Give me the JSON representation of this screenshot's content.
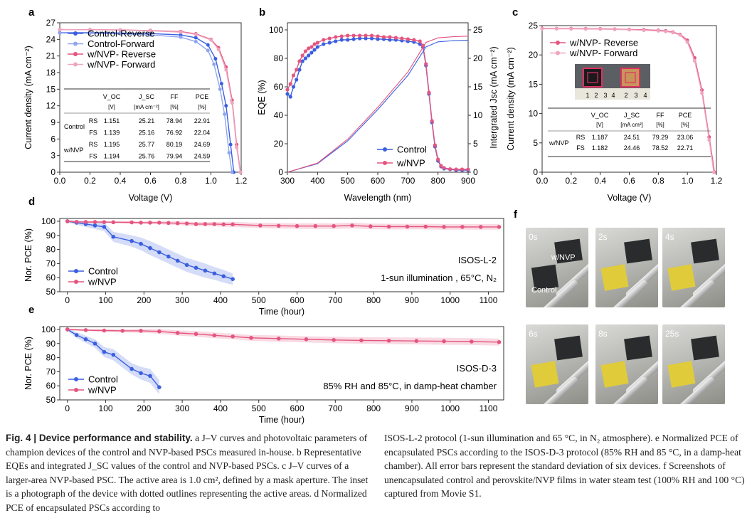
{
  "panels": {
    "a": "a",
    "b": "b",
    "c": "c",
    "d": "d",
    "e": "e",
    "f": "f"
  },
  "colors": {
    "control": "#3a5fe0",
    "nvp": "#e4557f",
    "control_light": "#8fa5ef",
    "nvp_light": "#efa5c0"
  },
  "chart_data": [
    {
      "id": "a",
      "type": "line",
      "xlabel": "Voltage (V)",
      "ylabel": "Current density (mA cm⁻²)",
      "xlim": [
        0,
        1.2
      ],
      "ylim": [
        0,
        27
      ],
      "xticks": [
        "0.0",
        "0.2",
        "0.4",
        "0.6",
        "0.8",
        "1.0",
        "1.2"
      ],
      "yticks": [
        "0",
        "3",
        "6",
        "9",
        "12",
        "15",
        "18",
        "21",
        "24",
        "27"
      ],
      "series": [
        {
          "name": "Control-Reverse",
          "x": [
            0,
            0.2,
            0.4,
            0.6,
            0.8,
            0.9,
            0.98,
            1.03,
            1.07,
            1.1,
            1.13,
            1.151
          ],
          "y": [
            25.21,
            25.2,
            25.15,
            25.05,
            24.8,
            24.3,
            23.0,
            20.5,
            16,
            12,
            5,
            0
          ]
        },
        {
          "name": "Control-Forward",
          "x": [
            0,
            0.2,
            0.4,
            0.6,
            0.8,
            0.9,
            0.98,
            1.02,
            1.06,
            1.09,
            1.12,
            1.139
          ],
          "y": [
            25.16,
            25.1,
            25.0,
            24.8,
            24.4,
            23.6,
            22.0,
            19.5,
            15,
            10.5,
            3.5,
            0
          ]
        },
        {
          "name": "w/NVP- Reverse",
          "x": [
            0,
            0.2,
            0.4,
            0.6,
            0.8,
            0.9,
            1.0,
            1.05,
            1.1,
            1.14,
            1.17,
            1.195
          ],
          "y": [
            25.77,
            25.75,
            25.7,
            25.6,
            25.4,
            25.0,
            24.0,
            22.5,
            19,
            13,
            5,
            0
          ]
        },
        {
          "name": "w/NVP- Forward",
          "x": [
            0,
            0.2,
            0.4,
            0.6,
            0.8,
            0.9,
            1.0,
            1.05,
            1.1,
            1.14,
            1.17,
            1.194
          ],
          "y": [
            25.76,
            25.74,
            25.68,
            25.55,
            25.3,
            24.9,
            23.9,
            22.2,
            18.5,
            12.5,
            4.5,
            0
          ]
        }
      ],
      "table": {
        "headers": [
          "V_OC",
          "J_SC",
          "FF",
          "PCE"
        ],
        "units": [
          "[V]",
          "[mA cm⁻²]",
          "[%]",
          "[%]"
        ],
        "rows": [
          {
            "group": "Control",
            "scan": "RS",
            "voc": "1.151",
            "jsc": "25.21",
            "ff": "78.94",
            "pce": "22.91"
          },
          {
            "group": "",
            "scan": "FS",
            "voc": "1.139",
            "jsc": "25.16",
            "ff": "76.92",
            "pce": "22.04"
          },
          {
            "group": "w/NVP",
            "scan": "RS",
            "voc": "1.195",
            "jsc": "25.77",
            "ff": "80.19",
            "pce": "24.69"
          },
          {
            "group": "",
            "scan": "FS",
            "voc": "1.194",
            "jsc": "25.76",
            "ff": "79.94",
            "pce": "24.59"
          }
        ]
      }
    },
    {
      "id": "b",
      "type": "line",
      "xlabel": "Wavelength (nm)",
      "ylabel": "EQE (%)",
      "ylabel2": "Intergrated Jsc (mA cm⁻²)",
      "xlim": [
        300,
        900
      ],
      "ylim": [
        0,
        105
      ],
      "ylim2": [
        0,
        26.25
      ],
      "xticks": [
        "300",
        "400",
        "500",
        "600",
        "700",
        "800",
        "900"
      ],
      "yticks": [
        "0",
        "20",
        "40",
        "60",
        "80",
        "100"
      ],
      "yticks2": [
        "0",
        "5",
        "10",
        "15",
        "20",
        "25"
      ],
      "series": [
        {
          "name": "Control",
          "x": [
            300,
            310,
            320,
            330,
            340,
            350,
            360,
            370,
            380,
            390,
            400,
            420,
            440,
            460,
            480,
            500,
            520,
            540,
            560,
            580,
            600,
            620,
            640,
            660,
            680,
            700,
            720,
            740,
            750,
            760,
            770,
            780,
            790,
            800,
            810,
            820,
            840,
            860,
            880,
            900
          ],
          "y": [
            55,
            53,
            60,
            65,
            72,
            78,
            80,
            82,
            84,
            86,
            88,
            90,
            91,
            92,
            93,
            93,
            93.5,
            94,
            94,
            94,
            93.5,
            93.5,
            93,
            93,
            92.5,
            92,
            91.5,
            90,
            88,
            75,
            55,
            35,
            18,
            8,
            4,
            2.5,
            2,
            1.5,
            1.5,
            1.5
          ]
        },
        {
          "name": "w/NVP",
          "x": [
            300,
            310,
            320,
            330,
            340,
            350,
            360,
            370,
            380,
            390,
            400,
            420,
            440,
            460,
            480,
            500,
            520,
            540,
            560,
            580,
            600,
            620,
            640,
            660,
            680,
            700,
            720,
            740,
            750,
            760,
            770,
            780,
            790,
            800,
            810,
            820,
            840,
            860,
            880,
            900
          ],
          "y": [
            58,
            62,
            68,
            72,
            78,
            82,
            85,
            87,
            88,
            90,
            91,
            93,
            94,
            95,
            95.5,
            96,
            96,
            96,
            96,
            96,
            95.5,
            95,
            95,
            94.5,
            94,
            93.5,
            93,
            92,
            89,
            76,
            56,
            36,
            19,
            9,
            4.5,
            3,
            2.2,
            2,
            2,
            2
          ]
        },
        {
          "name": "Control Jsc",
          "x": [
            300,
            400,
            500,
            600,
            700,
            760,
            800,
            850,
            900
          ],
          "y": [
            0,
            1.5,
            5.5,
            11,
            17,
            22,
            22.9,
            23.1,
            23.2
          ]
        },
        {
          "name": "w/NVP Jsc",
          "x": [
            300,
            400,
            500,
            600,
            700,
            760,
            800,
            850,
            900
          ],
          "y": [
            0,
            1.6,
            5.8,
            11.4,
            17.6,
            22.8,
            23.6,
            23.8,
            23.9
          ]
        }
      ]
    },
    {
      "id": "c",
      "type": "line",
      "xlabel": "Voltage (V)",
      "ylabel": "Current density (mA cm⁻²)",
      "xlim": [
        0,
        1.2
      ],
      "ylim": [
        0,
        25
      ],
      "xticks": [
        "0.0",
        "0.2",
        "0.4",
        "0.6",
        "0.8",
        "1.0",
        "1.2"
      ],
      "yticks": [
        "0",
        "5",
        "10",
        "15",
        "20",
        "25"
      ],
      "series": [
        {
          "name": "w/NVP- Reverse",
          "x": [
            0,
            0.1,
            0.2,
            0.3,
            0.4,
            0.5,
            0.6,
            0.7,
            0.8,
            0.85,
            0.9,
            0.95,
            1.0,
            1.05,
            1.1,
            1.15,
            1.187
          ],
          "y": [
            24.51,
            24.5,
            24.5,
            24.48,
            24.45,
            24.4,
            24.35,
            24.3,
            24.2,
            24.1,
            23.9,
            23.5,
            22.5,
            19.5,
            14,
            6,
            0
          ]
        },
        {
          "name": "w/NVP- Forward",
          "x": [
            0,
            0.1,
            0.2,
            0.3,
            0.4,
            0.5,
            0.6,
            0.7,
            0.8,
            0.85,
            0.9,
            0.95,
            1.0,
            1.05,
            1.1,
            1.15,
            1.182
          ],
          "y": [
            24.46,
            24.45,
            24.44,
            24.42,
            24.4,
            24.35,
            24.3,
            24.2,
            24.1,
            24.0,
            23.8,
            23.4,
            22.2,
            19,
            13.5,
            5.5,
            0
          ]
        }
      ],
      "table": {
        "headers": [
          "V_OC",
          "J_SC",
          "FF",
          "PCE"
        ],
        "units": [
          "[V]",
          "[mA cm²]",
          "[%]",
          "[%]"
        ],
        "rows": [
          {
            "group": "w/NVP",
            "scan": "RS",
            "voc": "1.187",
            "jsc": "24.51",
            "ff": "79.29",
            "pce": "23.06"
          },
          {
            "group": "",
            "scan": "FS",
            "voc": "1.182",
            "jsc": "24.46",
            "ff": "78.52",
            "pce": "22.71"
          }
        ]
      }
    },
    {
      "id": "d",
      "type": "line",
      "xlabel": "Time (hour)",
      "ylabel": "Nor. PCE (%)",
      "xlim": [
        -20,
        1140
      ],
      "ylim": [
        50,
        102
      ],
      "xticks": [
        "0",
        "100",
        "200",
        "300",
        "400",
        "500",
        "600",
        "700",
        "800",
        "900",
        "1000",
        "1100"
      ],
      "yticks": [
        "50",
        "60",
        "70",
        "80",
        "90",
        "100"
      ],
      "annotation": "ISOS-L-2",
      "condition": "1-sun illumination , 65°C, N₂",
      "series": [
        {
          "name": "Control",
          "x": [
            0,
            24,
            48,
            72,
            96,
            120,
            168,
            192,
            216,
            240,
            264,
            288,
            312,
            336,
            360,
            384,
            408,
            432
          ],
          "y": [
            100,
            99,
            98,
            97,
            96,
            89,
            86,
            84,
            81,
            78,
            75,
            72,
            69,
            67,
            65,
            63,
            61,
            59
          ],
          "err": [
            1,
            1.5,
            2,
            2.5,
            3,
            3.5,
            4,
            4.5,
            5,
            5,
            5,
            5,
            5,
            5,
            5,
            4.5,
            4.5,
            4
          ]
        },
        {
          "name": "w/NVP",
          "x": [
            0,
            24,
            48,
            72,
            96,
            120,
            168,
            192,
            216,
            240,
            264,
            288,
            312,
            336,
            360,
            384,
            408,
            432,
            504,
            552,
            600,
            648,
            696,
            744,
            792,
            840,
            888,
            936,
            984,
            1032,
            1080,
            1128
          ],
          "y": [
            100,
            99.6,
            99.5,
            99.5,
            99.4,
            99.3,
            99.2,
            99,
            99,
            99,
            98.8,
            98.6,
            98.4,
            98,
            98,
            98,
            97.8,
            97.8,
            97,
            96.8,
            96.6,
            96.6,
            96.6,
            97,
            96.4,
            96.2,
            96.2,
            96.2,
            96,
            96,
            96,
            96
          ],
          "err": [
            0.5,
            0.6,
            0.6,
            0.7,
            0.8,
            0.8,
            1,
            1,
            1,
            1.1,
            1.2,
            1.3,
            1.4,
            1.5,
            1.5,
            1.6,
            1.7,
            1.8,
            1.8,
            1.9,
            1.9,
            2,
            2,
            2,
            2,
            2,
            2,
            2,
            2,
            2,
            2,
            2
          ]
        }
      ]
    },
    {
      "id": "e",
      "type": "line",
      "xlabel": "Time (hour)",
      "ylabel": "Nor. PCE (%)",
      "xlim": [
        -20,
        1140
      ],
      "ylim": [
        50,
        102
      ],
      "xticks": [
        "0",
        "100",
        "200",
        "300",
        "400",
        "500",
        "600",
        "700",
        "800",
        "900",
        "1000",
        "1100"
      ],
      "yticks": [
        "50",
        "60",
        "70",
        "80",
        "90",
        "100"
      ],
      "annotation": "ISOS-D-3",
      "condition": "85% RH and 85°C, in damp-heat chamber",
      "series": [
        {
          "name": "Control",
          "x": [
            0,
            24,
            48,
            72,
            96,
            120,
            168,
            192,
            216,
            240
          ],
          "y": [
            100,
            96,
            93,
            90,
            84,
            82,
            72,
            69,
            67,
            59
          ],
          "err": [
            1,
            2,
            2.5,
            3,
            3.5,
            4,
            4,
            4.5,
            5,
            5
          ]
        },
        {
          "name": "w/NVP",
          "x": [
            0,
            48,
            96,
            144,
            192,
            240,
            288,
            336,
            384,
            432,
            480,
            552,
            624,
            696,
            768,
            840,
            912,
            984,
            1056,
            1128
          ],
          "y": [
            100,
            99.5,
            99.2,
            99,
            99,
            98.6,
            97.5,
            96.8,
            95.8,
            95,
            94,
            93.5,
            93,
            92.5,
            92.2,
            92,
            91.8,
            91.6,
            91.4,
            91
          ],
          "err": [
            0.5,
            0.8,
            1,
            1.2,
            1.4,
            1.6,
            1.8,
            2,
            2,
            2,
            2.1,
            2.2,
            2.2,
            2.3,
            2.3,
            2.4,
            2.4,
            2.5,
            2.5,
            2.5
          ]
        }
      ]
    }
  ],
  "legends": {
    "a": [
      "Control-Reverse",
      "Control-Forward",
      "w/NVP- Reverse",
      "w/NVP- Forward"
    ],
    "b": [
      "Control",
      "w/NVP"
    ],
    "c": [
      "w/NVP- Reverse",
      "w/NVP- Forward"
    ],
    "d": [
      "Control",
      "w/NVP"
    ],
    "e": [
      "Control",
      "w/NVP"
    ]
  },
  "photos": {
    "times": [
      "0s",
      "2s",
      "4s",
      "6s",
      "8s",
      "25s"
    ],
    "label_nvp": "w/NVP",
    "label_control": "Control",
    "inset_ruler": [
      "1",
      "2",
      "3",
      "4",
      "2",
      "3",
      "4"
    ]
  },
  "caption": {
    "fig": "Fig. 4 | Device performance and stability.",
    "left": " a J–V curves and photovoltaic parameters of champion devices of the control and NVP-based PSCs measured in-house. b Representative EQEs and integrated J_SC values of the control and NVP-based PSCs. c J–V curves of a larger-area NVP-based PSC. The active area is 1.0 cm², defined by a mask aperture. The inset is a photograph of the device with dotted outlines representing the active areas. d Normalized PCE of encapsulated PSCs according to",
    "right": "ISOS-L-2 protocol (1-sun illumination and 65 °C, in N₂ atmosphere). e Normalized PCE of encapsulated PSCs according to the ISOS-D-3 protocol (85% RH and 85 °C, in a damp-heat chamber). All error bars represent the standard deviation of six devices. f Screenshots of unencapsulated control and perovskite/NVP films in water steam test (100% RH and 100 °C) captured from Movie S1."
  }
}
